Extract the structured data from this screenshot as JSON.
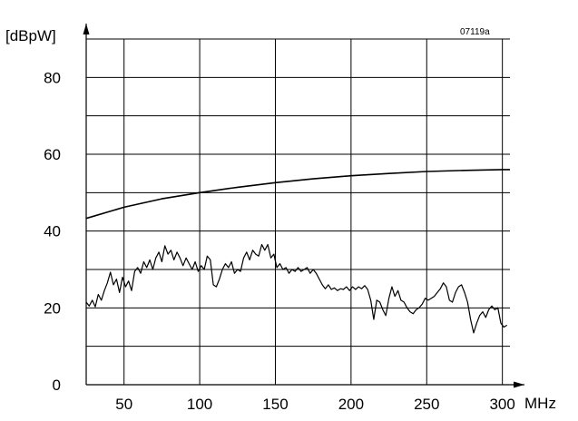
{
  "chart_data": {
    "type": "line",
    "code": "07119a",
    "ylabel": "[dBpW]",
    "xunit": "MHz",
    "xlim": [
      25,
      305
    ],
    "ylim": [
      0,
      90
    ],
    "x_tick_values": [
      50,
      100,
      150,
      200,
      250,
      300
    ],
    "x_tick_labels": [
      "50",
      "100",
      "150",
      "200",
      "250",
      "300"
    ],
    "y_tick_values": [
      0,
      20,
      40,
      60,
      80
    ],
    "y_tick_labels": [
      "0",
      "20",
      "40",
      "60",
      "80"
    ],
    "grid": true,
    "grid_x": [
      50,
      100,
      150,
      200,
      250,
      300
    ],
    "grid_y": [
      10,
      20,
      30,
      40,
      50,
      60,
      70,
      80
    ],
    "series": [
      {
        "x": [
          25,
          50,
          75,
          100,
          125,
          150,
          175,
          200,
          225,
          250,
          275,
          300,
          305
        ],
        "y": [
          43.3,
          46.2,
          48.4,
          50.0,
          51.4,
          52.6,
          53.6,
          54.4,
          55.0,
          55.5,
          55.8,
          56.0,
          56.0
        ]
      },
      {
        "x": [
          25,
          27,
          29,
          31,
          33,
          35,
          37,
          39,
          41,
          43,
          45,
          47,
          49,
          51,
          53,
          55,
          57,
          59,
          61,
          63,
          65,
          67,
          69,
          71,
          73,
          75,
          77,
          79,
          81,
          83,
          85,
          87,
          89,
          91,
          93,
          95,
          97,
          99,
          101,
          103,
          105,
          107,
          109,
          111,
          113,
          115,
          117,
          119,
          121,
          123,
          125,
          127,
          129,
          131,
          133,
          135,
          137,
          139,
          141,
          143,
          145,
          147,
          149,
          151,
          153,
          155,
          157,
          159,
          161,
          163,
          165,
          167,
          169,
          171,
          173,
          175,
          177,
          179,
          181,
          183,
          185,
          187,
          189,
          191,
          193,
          195,
          197,
          199,
          201,
          203,
          205,
          207,
          209,
          211,
          213,
          215,
          217,
          219,
          221,
          223,
          225,
          227,
          229,
          231,
          233,
          235,
          237,
          239,
          241,
          243,
          245,
          247,
          249,
          251,
          253,
          255,
          257,
          259,
          261,
          263,
          265,
          267,
          269,
          271,
          273,
          275,
          277,
          279,
          281,
          283,
          285,
          287,
          289,
          291,
          293,
          295,
          297,
          299,
          301,
          303
        ],
        "y": [
          21.5,
          20.5,
          22.0,
          20.3,
          23.5,
          22.0,
          24.5,
          26.5,
          29.3,
          26.0,
          27.5,
          24.0,
          28.0,
          25.5,
          27.0,
          24.5,
          29.5,
          30.5,
          29.0,
          32.0,
          30.5,
          32.5,
          30.0,
          33.0,
          34.5,
          32.0,
          36.2,
          34.0,
          35.0,
          32.5,
          34.5,
          33.0,
          31.0,
          33.0,
          31.5,
          30.0,
          32.0,
          29.5,
          31.0,
          30.0,
          33.5,
          32.5,
          26.0,
          25.5,
          27.5,
          30.0,
          31.5,
          30.5,
          32.0,
          29.0,
          30.0,
          29.5,
          33.0,
          34.5,
          32.5,
          35.0,
          34.0,
          33.5,
          36.5,
          35.0,
          36.5,
          33.0,
          34.0,
          30.5,
          31.5,
          30.0,
          30.5,
          29.0,
          30.0,
          29.5,
          30.5,
          29.5,
          30.0,
          30.5,
          29.0,
          30.0,
          29.0,
          27.5,
          26.0,
          25.0,
          26.0,
          24.8,
          25.2,
          24.5,
          25.0,
          24.8,
          25.5,
          24.5,
          25.5,
          24.8,
          25.5,
          25.0,
          25.8,
          24.8,
          22.0,
          17.0,
          22.0,
          21.5,
          19.5,
          18.0,
          22.5,
          25.5,
          23.0,
          24.5,
          22.0,
          21.5,
          20.0,
          19.0,
          18.5,
          19.5,
          20.0,
          21.0,
          22.5,
          22.0,
          22.5,
          23.0,
          24.0,
          25.0,
          26.5,
          25.5,
          22.0,
          21.5,
          24.0,
          25.5,
          26.0,
          24.0,
          21.5,
          17.0,
          13.5,
          16.0,
          18.0,
          19.0,
          17.5,
          19.5,
          20.5,
          19.5,
          20.0,
          16.0,
          15.0,
          15.5
        ]
      }
    ]
  }
}
